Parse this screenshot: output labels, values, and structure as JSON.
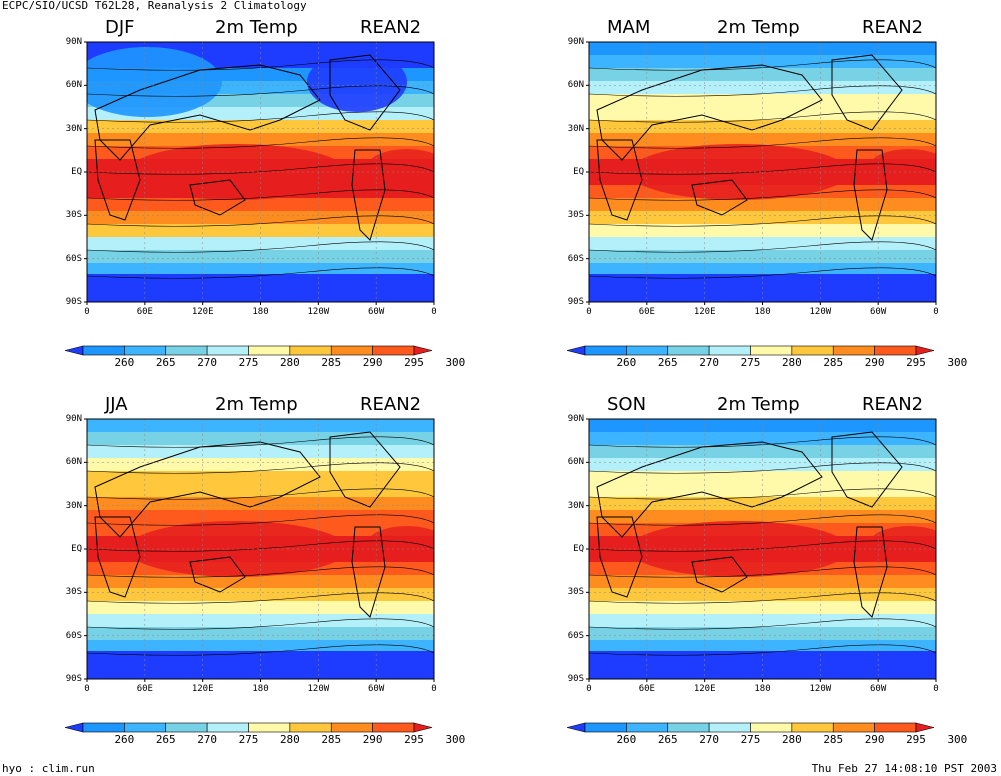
{
  "header": {
    "title": "ECPC/SIO/UCSD T62L28, Reanalysis 2 Climatology"
  },
  "footer": {
    "left": "hyo : clim.run",
    "right": "Thu Feb 27 14:08:10 PST 2003"
  },
  "panels": [
    {
      "season": "DJF",
      "variable": "2m Temp",
      "source": "REAN2"
    },
    {
      "season": "MAM",
      "variable": "2m Temp",
      "source": "REAN2"
    },
    {
      "season": "JJA",
      "variable": "2m Temp",
      "source": "REAN2"
    },
    {
      "season": "SON",
      "variable": "2m Temp",
      "source": "REAN2"
    }
  ],
  "axes": {
    "lat_labels": [
      "90N",
      "60N",
      "30N",
      "EQ",
      "30S",
      "60S",
      "90S"
    ],
    "lon_labels": [
      "0",
      "60E",
      "120E",
      "180",
      "120W",
      "60W",
      "0"
    ]
  },
  "colorbar": {
    "labels": [
      "260",
      "265",
      "270",
      "275",
      "280",
      "285",
      "290",
      "295",
      "300"
    ],
    "colors": [
      "#1e3cff",
      "#1e96ff",
      "#3cb4ff",
      "#78d2e6",
      "#b4f0fa",
      "#fffaaa",
      "#ffc83c",
      "#ff8c1e",
      "#ff5a1e",
      "#e61e1e"
    ]
  }
}
